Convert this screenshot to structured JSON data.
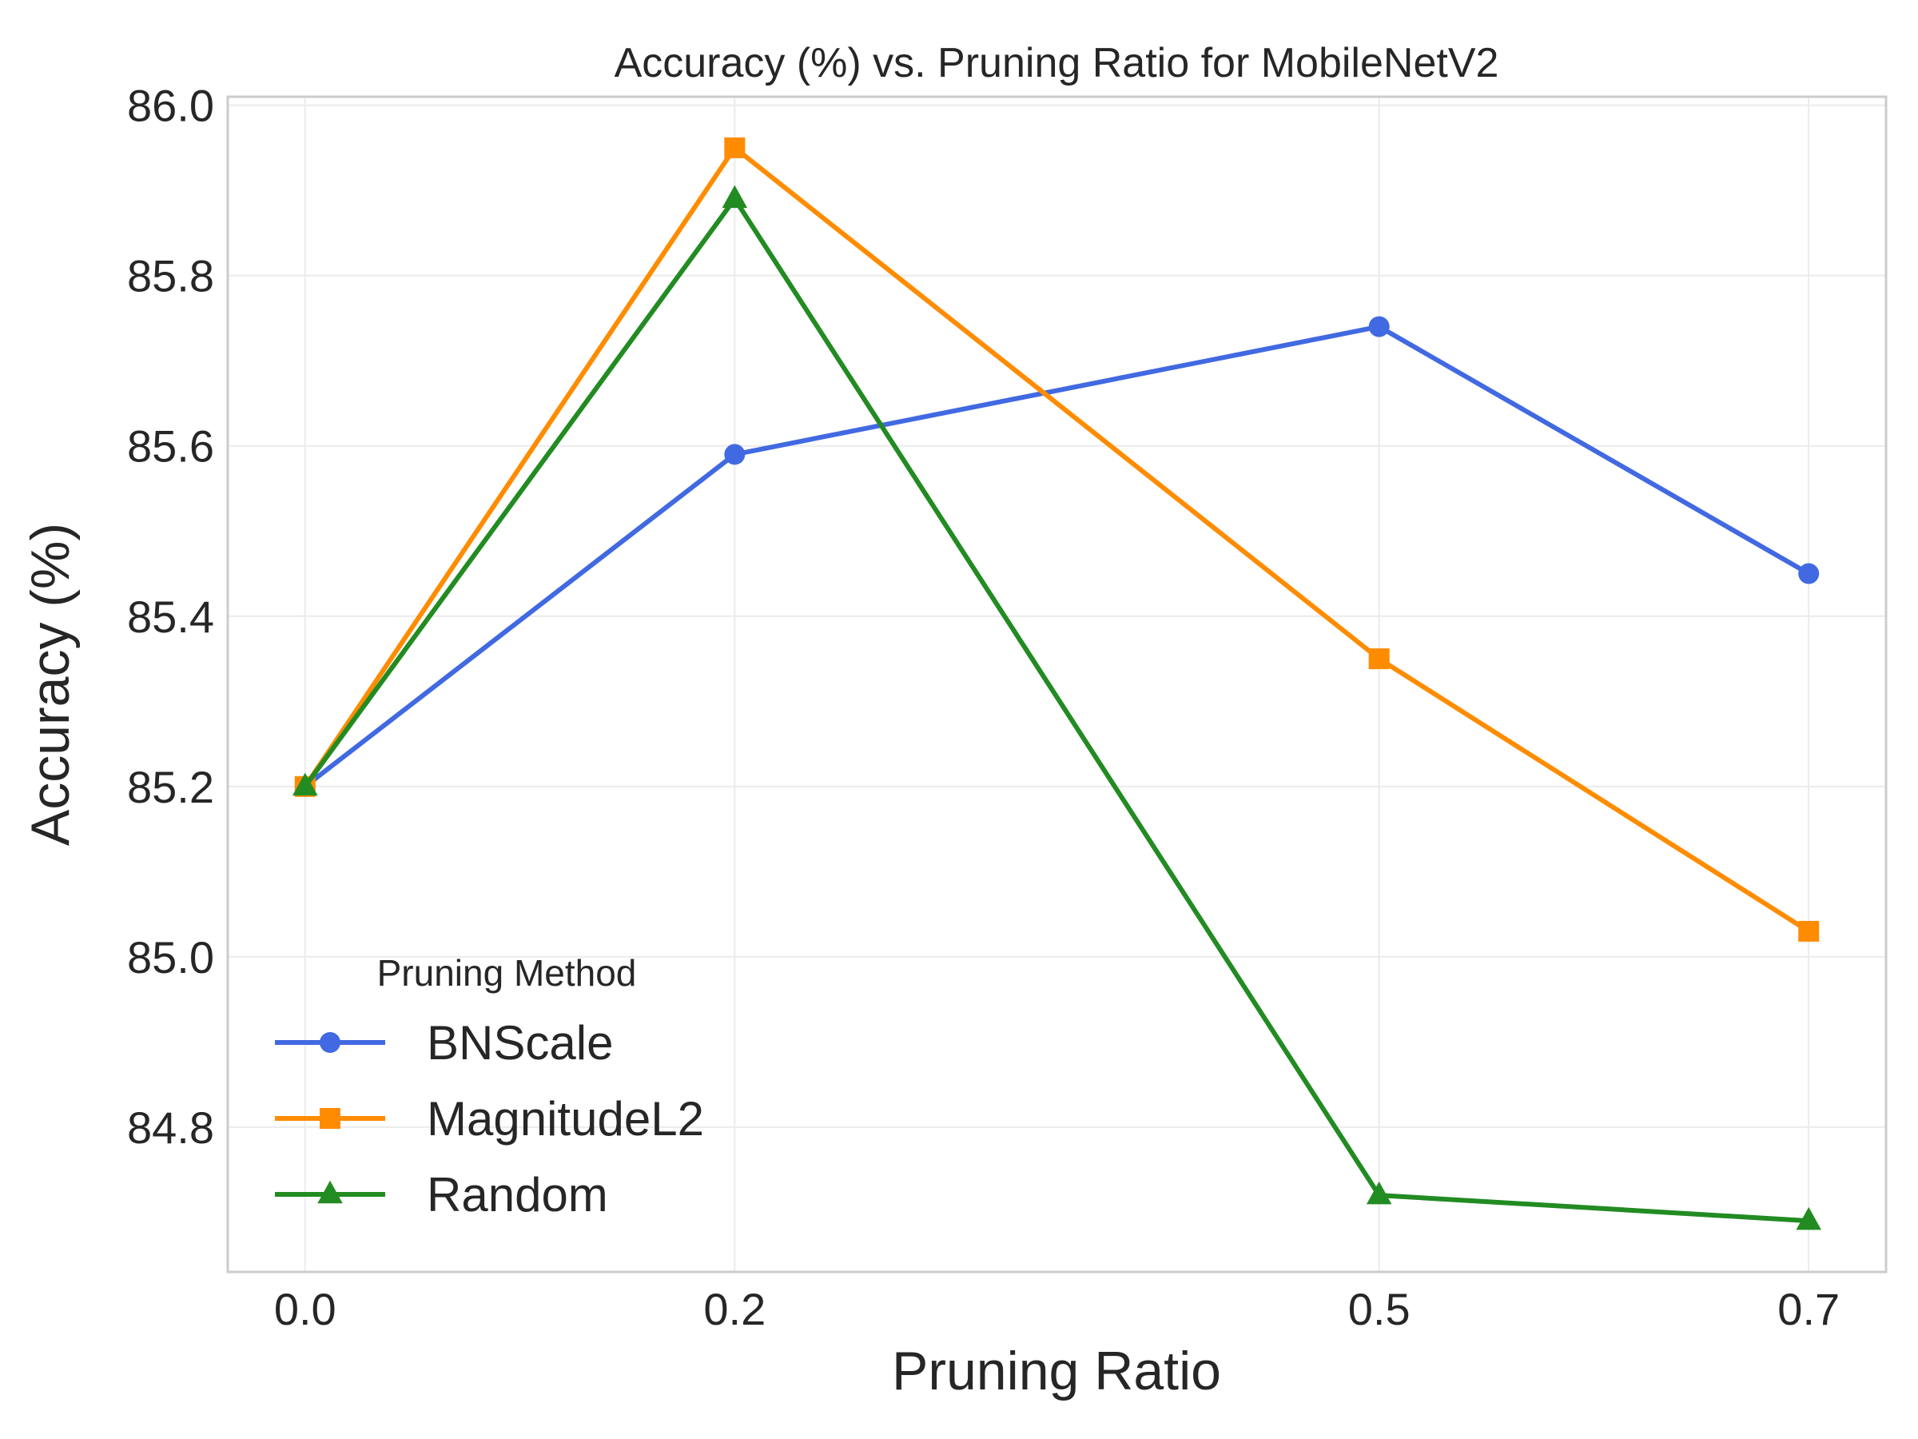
{
  "chart_data": {
    "type": "line",
    "title": "Accuracy (%) vs. Pruning Ratio for MobileNetV2",
    "xlabel": "Pruning Ratio",
    "ylabel": "Accuracy (%)",
    "x": [
      0.0,
      0.2,
      0.5,
      0.7
    ],
    "x_tick_labels": [
      "0.0",
      "0.2",
      "0.5",
      "0.7"
    ],
    "xlim": [
      -0.036,
      0.736
    ],
    "ylim": [
      84.63,
      86.01
    ],
    "y_ticks": [
      84.8,
      85.0,
      85.2,
      85.4,
      85.6,
      85.8,
      86.0
    ],
    "y_tick_labels": [
      "84.8",
      "85.0",
      "85.2",
      "85.4",
      "85.6",
      "85.8",
      "86.0"
    ],
    "grid": true,
    "legend": {
      "title": "Pruning Method",
      "placement": "lower-left"
    },
    "series": [
      {
        "name": "BNScale",
        "values": [
          85.2,
          85.59,
          85.74,
          85.45
        ],
        "color": "#4169e1",
        "marker": "circle"
      },
      {
        "name": "MagnitudeL2",
        "values": [
          85.2,
          85.95,
          85.35,
          85.03
        ],
        "color": "#ff8c00",
        "marker": "square"
      },
      {
        "name": "Random",
        "values": [
          85.2,
          85.89,
          84.72,
          84.69
        ],
        "color": "#228b22",
        "marker": "triangle"
      }
    ]
  }
}
